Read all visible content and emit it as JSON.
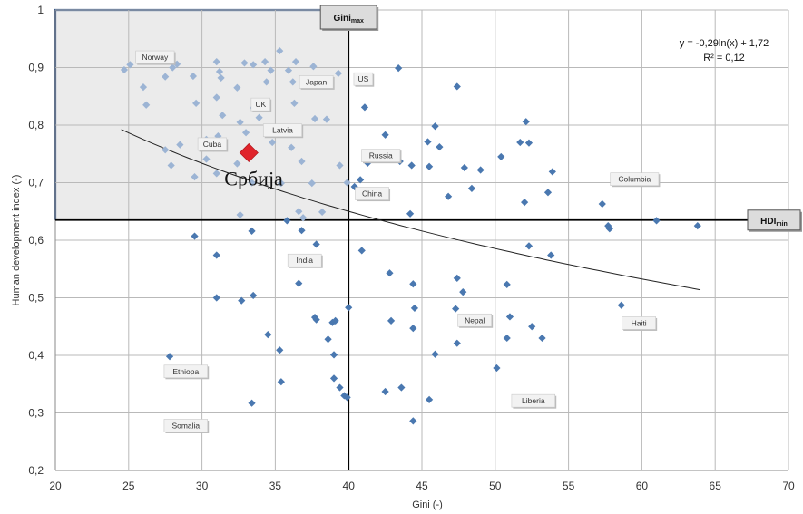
{
  "chart_data": {
    "type": "scatter",
    "title": "",
    "xlabel": "Gini (-)",
    "ylabel": "Human development index (-)",
    "xlim": [
      20,
      70
    ],
    "ylim": [
      0.2,
      1.0
    ],
    "x_ticks": [
      "20",
      "25",
      "30",
      "35",
      "40",
      "45",
      "50",
      "55",
      "60",
      "65",
      "70"
    ],
    "y_ticks": [
      "0,2",
      "0,3",
      "0,4",
      "0,5",
      "0,6",
      "0,7",
      "0,8",
      "0,9",
      "1"
    ],
    "grid": true,
    "colors": {
      "marker_dark": "#4a78b0",
      "marker_light": "#9cb4d4",
      "highlight": "#e0242b",
      "region_fill": "#ebebeb",
      "region_border": "#3b5b8c"
    },
    "gini_max": 40,
    "hdi_min": 0.635,
    "gini_max_label": {
      "main": "Gini",
      "sub": "max"
    },
    "hdi_min_label": {
      "main": "HDI",
      "sub": "min"
    },
    "trendline": {
      "equation": "y = -0,29ln(x) + 1,72",
      "r2": "R² = 0,12",
      "coef_a": -0.29,
      "coef_b": 1.72,
      "x_range": [
        24.5,
        64
      ]
    },
    "highlight_point": {
      "x": 33.2,
      "y": 0.752,
      "label": "Србија"
    },
    "labels": [
      {
        "text": "Norway",
        "x": 26.8,
        "y": 0.918
      },
      {
        "text": "Japan",
        "x": 37.8,
        "y": 0.875
      },
      {
        "text": "US",
        "x": 41.0,
        "y": 0.88
      },
      {
        "text": "UK",
        "x": 34.0,
        "y": 0.836
      },
      {
        "text": "Latvia",
        "x": 35.5,
        "y": 0.791
      },
      {
        "text": "Cuba",
        "x": 30.7,
        "y": 0.767
      },
      {
        "text": "Russia",
        "x": 42.2,
        "y": 0.747
      },
      {
        "text": "Columbia",
        "x": 59.5,
        "y": 0.706
      },
      {
        "text": "China",
        "x": 41.6,
        "y": 0.681
      },
      {
        "text": "India",
        "x": 37.0,
        "y": 0.565
      },
      {
        "text": "Nepal",
        "x": 48.6,
        "y": 0.461
      },
      {
        "text": "Haiti",
        "x": 59.8,
        "y": 0.456
      },
      {
        "text": "Ethiopa",
        "x": 28.9,
        "y": 0.372
      },
      {
        "text": "Liberia",
        "x": 52.6,
        "y": 0.321
      },
      {
        "text": "Somalia",
        "x": 28.9,
        "y": 0.278
      }
    ],
    "points": [
      [
        24.7,
        0.896
      ],
      [
        25.1,
        0.905
      ],
      [
        26.0,
        0.866
      ],
      [
        26.2,
        0.835
      ],
      [
        27.5,
        0.884
      ],
      [
        28.0,
        0.9
      ],
      [
        28.3,
        0.906
      ],
      [
        29.4,
        0.885
      ],
      [
        31.0,
        0.91
      ],
      [
        31.2,
        0.893
      ],
      [
        31.3,
        0.882
      ],
      [
        32.4,
        0.865
      ],
      [
        32.9,
        0.908
      ],
      [
        33.5,
        0.905
      ],
      [
        34.3,
        0.91
      ],
      [
        34.7,
        0.895
      ],
      [
        35.3,
        0.929
      ],
      [
        35.9,
        0.895
      ],
      [
        36.2,
        0.875
      ],
      [
        36.4,
        0.91
      ],
      [
        37.6,
        0.902
      ],
      [
        39.3,
        0.89
      ],
      [
        29.6,
        0.838
      ],
      [
        31.0,
        0.848
      ],
      [
        31.4,
        0.817
      ],
      [
        33.5,
        0.83
      ],
      [
        34.4,
        0.875
      ],
      [
        36.3,
        0.838
      ],
      [
        32.6,
        0.805
      ],
      [
        33.9,
        0.813
      ],
      [
        33.0,
        0.787
      ],
      [
        37.7,
        0.811
      ],
      [
        38.5,
        0.81
      ],
      [
        27.5,
        0.757
      ],
      [
        28.5,
        0.766
      ],
      [
        27.9,
        0.73
      ],
      [
        30.3,
        0.775
      ],
      [
        30.8,
        0.76
      ],
      [
        31.1,
        0.781
      ],
      [
        31.4,
        0.77
      ],
      [
        33.2,
        0.76
      ],
      [
        34.8,
        0.77
      ],
      [
        36.1,
        0.761
      ],
      [
        29.5,
        0.71
      ],
      [
        30.3,
        0.741
      ],
      [
        31.0,
        0.716
      ],
      [
        32.4,
        0.733
      ],
      [
        33.4,
        0.7
      ],
      [
        35.4,
        0.699
      ],
      [
        36.8,
        0.737
      ],
      [
        37.5,
        0.699
      ],
      [
        39.4,
        0.73
      ],
      [
        39.9,
        0.7
      ],
      [
        32.6,
        0.644
      ],
      [
        36.6,
        0.65
      ],
      [
        36.9,
        0.639
      ],
      [
        38.2,
        0.649
      ],
      [
        43.4,
        0.899
      ],
      [
        47.4,
        0.867
      ],
      [
        41.1,
        0.831
      ],
      [
        42.5,
        0.783
      ],
      [
        45.9,
        0.798
      ],
      [
        52.1,
        0.806
      ],
      [
        41.3,
        0.734
      ],
      [
        43.5,
        0.737
      ],
      [
        44.3,
        0.73
      ],
      [
        45.4,
        0.771
      ],
      [
        46.2,
        0.762
      ],
      [
        45.5,
        0.728
      ],
      [
        47.9,
        0.726
      ],
      [
        49.0,
        0.722
      ],
      [
        50.4,
        0.745
      ],
      [
        51.7,
        0.77
      ],
      [
        52.3,
        0.769
      ],
      [
        53.9,
        0.719
      ],
      [
        40.4,
        0.693
      ],
      [
        40.8,
        0.705
      ],
      [
        41.4,
        0.68
      ],
      [
        46.8,
        0.676
      ],
      [
        48.4,
        0.69
      ],
      [
        52.0,
        0.666
      ],
      [
        53.6,
        0.683
      ],
      [
        57.3,
        0.663
      ],
      [
        57.7,
        0.625
      ],
      [
        57.8,
        0.62
      ],
      [
        61.0,
        0.634
      ],
      [
        63.8,
        0.625
      ],
      [
        44.2,
        0.646
      ],
      [
        36.8,
        0.617
      ],
      [
        35.8,
        0.634
      ],
      [
        33.4,
        0.616
      ],
      [
        29.5,
        0.607
      ],
      [
        37.8,
        0.593
      ],
      [
        40.9,
        0.582
      ],
      [
        52.3,
        0.59
      ],
      [
        53.8,
        0.574
      ],
      [
        31.0,
        0.574
      ],
      [
        42.8,
        0.543
      ],
      [
        44.4,
        0.524
      ],
      [
        47.4,
        0.534
      ],
      [
        47.8,
        0.51
      ],
      [
        50.8,
        0.523
      ],
      [
        36.6,
        0.525
      ],
      [
        31.0,
        0.5
      ],
      [
        32.7,
        0.495
      ],
      [
        33.5,
        0.504
      ],
      [
        40.0,
        0.483
      ],
      [
        44.5,
        0.482
      ],
      [
        47.3,
        0.481
      ],
      [
        51.0,
        0.467
      ],
      [
        52.5,
        0.45
      ],
      [
        53.2,
        0.43
      ],
      [
        58.6,
        0.487
      ],
      [
        37.7,
        0.466
      ],
      [
        37.8,
        0.462
      ],
      [
        38.9,
        0.457
      ],
      [
        39.1,
        0.46
      ],
      [
        42.9,
        0.46
      ],
      [
        44.4,
        0.447
      ],
      [
        47.4,
        0.421
      ],
      [
        50.8,
        0.43
      ],
      [
        34.5,
        0.436
      ],
      [
        38.6,
        0.428
      ],
      [
        35.3,
        0.409
      ],
      [
        39.0,
        0.401
      ],
      [
        45.9,
        0.402
      ],
      [
        50.1,
        0.378
      ],
      [
        27.8,
        0.398
      ],
      [
        35.4,
        0.354
      ],
      [
        39.0,
        0.36
      ],
      [
        39.4,
        0.344
      ],
      [
        39.7,
        0.33
      ],
      [
        39.9,
        0.327
      ],
      [
        42.5,
        0.337
      ],
      [
        43.6,
        0.344
      ],
      [
        45.5,
        0.323
      ],
      [
        33.4,
        0.317
      ],
      [
        44.4,
        0.286
      ]
    ]
  }
}
